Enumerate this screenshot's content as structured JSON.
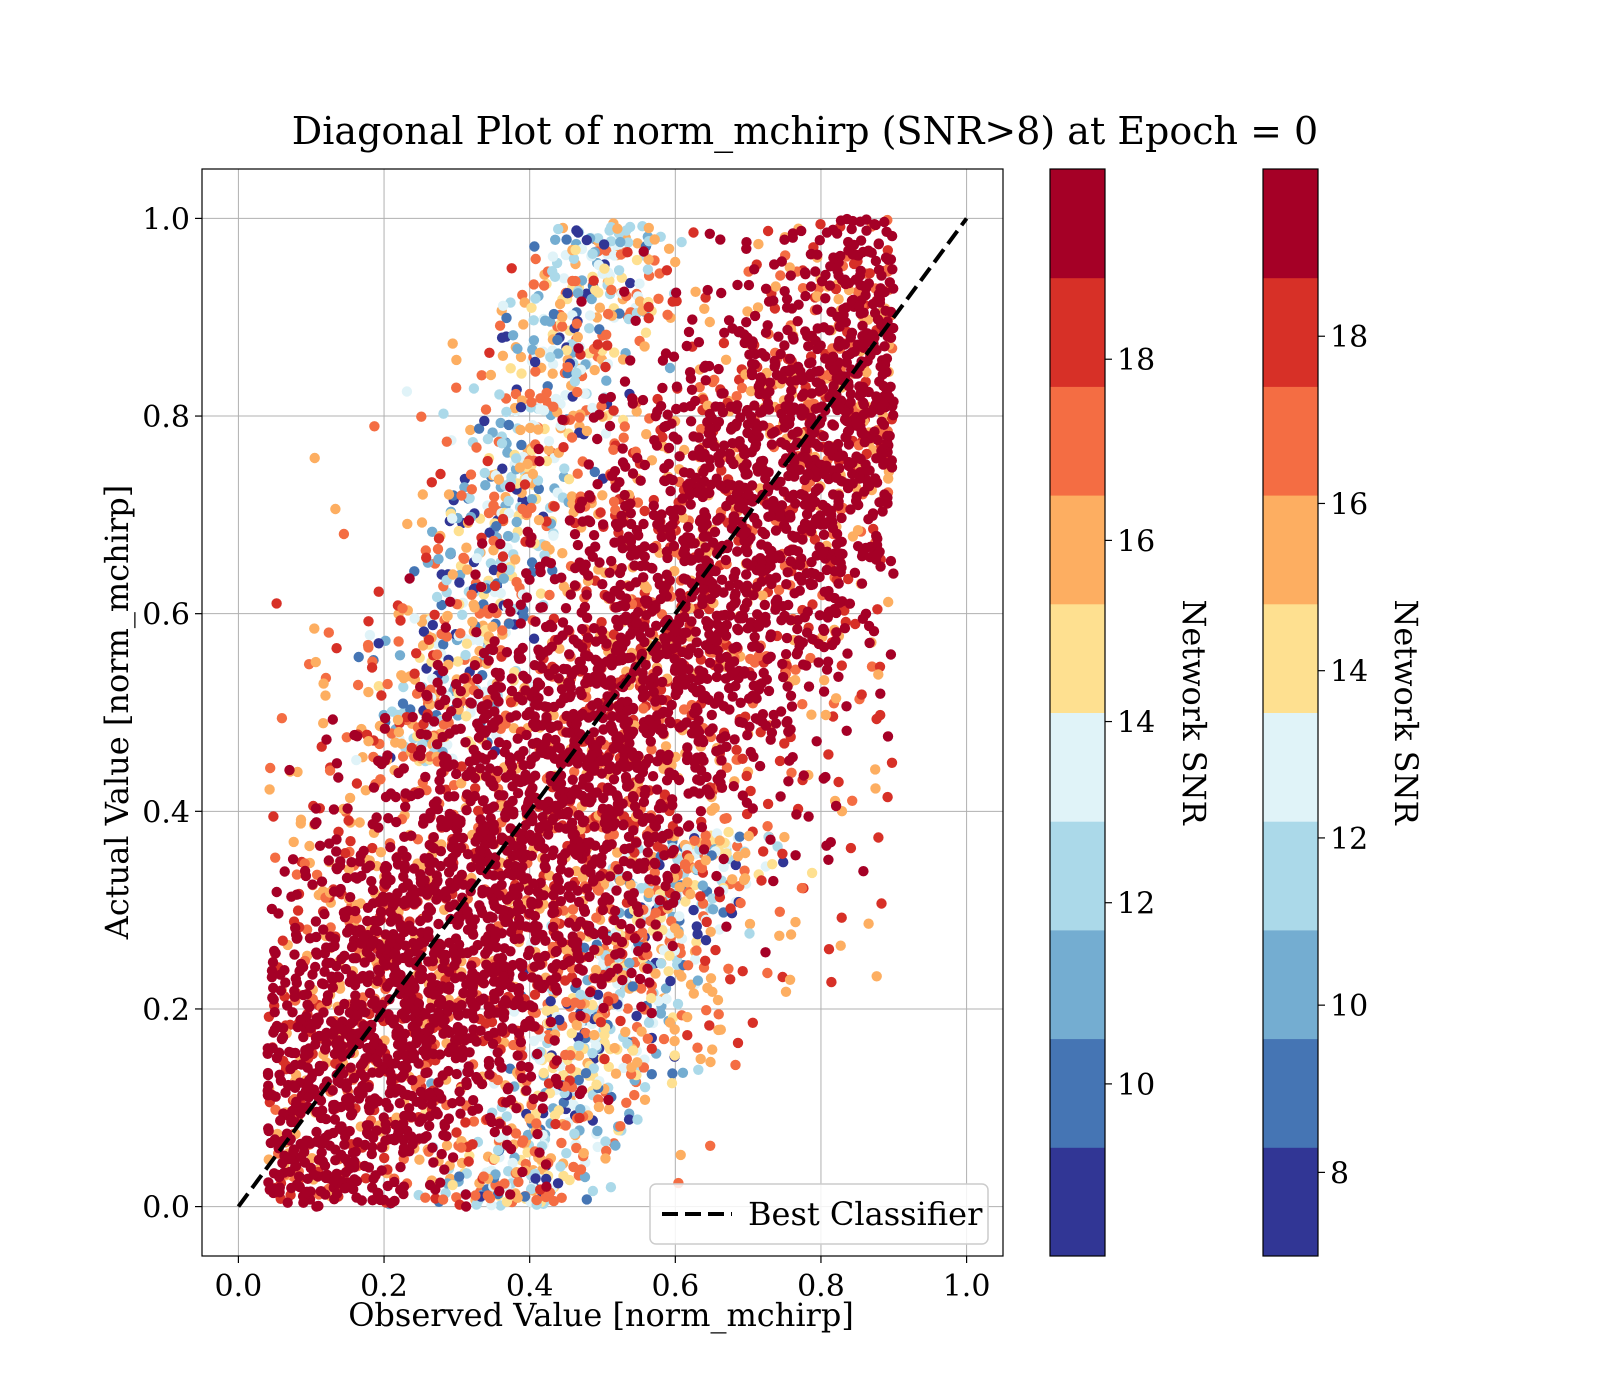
{
  "chart_data": {
    "type": "scatter",
    "title": "Diagonal Plot of norm_mchirp (SNR>8) at Epoch = 0",
    "xlabel": "Observed Value [norm_mchirp]",
    "ylabel": "Actual Value [norm_mchirp]",
    "xlim": [
      -0.05,
      1.05
    ],
    "ylim": [
      -0.05,
      1.05
    ],
    "xticks": [
      "0.0",
      "0.2",
      "0.4",
      "0.6",
      "0.8",
      "1.0"
    ],
    "yticks": [
      "0.0",
      "0.2",
      "0.4",
      "0.6",
      "0.8",
      "1.0"
    ],
    "grid": true,
    "reference_line": {
      "label": "Best Classifier",
      "x": [
        0.0,
        1.0
      ],
      "y": [
        0.0,
        1.0
      ],
      "style": "dashed",
      "color": "#000000"
    },
    "legend_position": "lower right",
    "color_variable": "Network SNR",
    "colormap": [
      "#313695",
      "#4575b4",
      "#74add1",
      "#abd9e9",
      "#e0f3f8",
      "#fee090",
      "#fdae61",
      "#f46d43",
      "#d73027",
      "#a50026"
    ],
    "point_clouds": [
      {
        "snr_band": "low (blue, 8-12)",
        "upper_branch": {
          "x_range": [
            0.17,
            0.45
          ],
          "y_range": [
            0.55,
            1.0
          ]
        },
        "lower_branch": {
          "x_range": [
            0.3,
            0.62
          ],
          "y_range": [
            0.0,
            0.35
          ]
        }
      },
      {
        "snr_band": "mid (yellow/orange, 13-17)",
        "upper_branch": {
          "x_range": [
            0.15,
            0.55
          ],
          "y_range": [
            0.35,
            1.0
          ]
        },
        "lower_branch": {
          "x_range": [
            0.2,
            0.6
          ],
          "y_range": [
            0.0,
            0.3
          ]
        }
      },
      {
        "snr_band": "high (dark red, 18+)",
        "center_line": "y = x",
        "spread": 0.13,
        "x_range": [
          0.06,
          0.84
        ]
      }
    ],
    "colorbars": [
      {
        "label": "Network SNR",
        "ticks": [
          "10",
          "12",
          "14",
          "16",
          "18"
        ],
        "tick_values": [
          10,
          12,
          14,
          16,
          18
        ],
        "range": [
          8.1,
          20.1
        ]
      },
      {
        "label": "Network SNR",
        "ticks": [
          "8",
          "10",
          "12",
          "14",
          "16",
          "18"
        ],
        "tick_values": [
          8,
          10,
          12,
          14,
          16,
          18
        ],
        "range": [
          7.0,
          20.0
        ]
      }
    ]
  }
}
